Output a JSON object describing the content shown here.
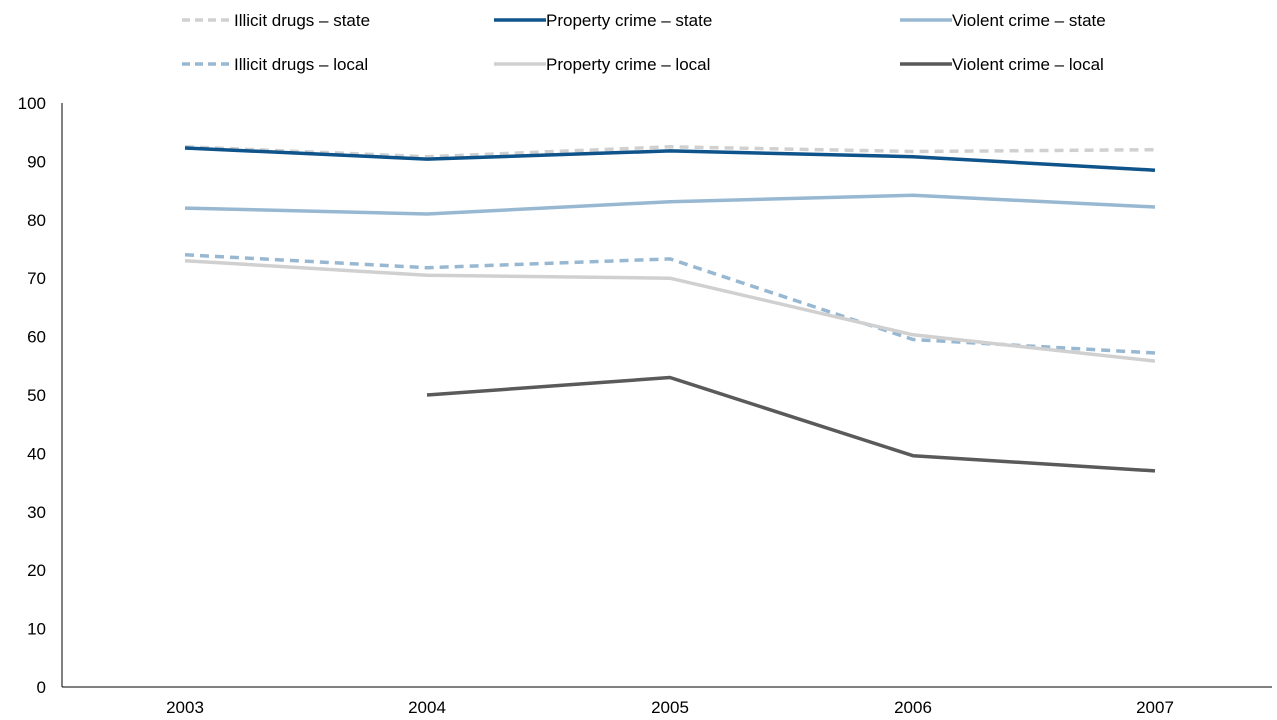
{
  "chart_data": {
    "type": "line",
    "title": "",
    "xlabel": "",
    "ylabel": "",
    "x": [
      "2003",
      "2004",
      "2005",
      "2006",
      "2007"
    ],
    "ylim": [
      0,
      100
    ],
    "yticks": [
      0,
      10,
      20,
      30,
      40,
      50,
      60,
      70,
      80,
      90,
      100
    ],
    "grid": false,
    "legend_position": "top",
    "series": [
      {
        "name": "Illicit drugs – state",
        "values": [
          92.5,
          90.8,
          92.5,
          91.7,
          92.0
        ],
        "color": "#d0d0d0",
        "dashed": true
      },
      {
        "name": "Property crime – state",
        "values": [
          92.3,
          90.4,
          91.8,
          90.8,
          88.5
        ],
        "color": "#0e5389",
        "dashed": false
      },
      {
        "name": "Violent crime – state",
        "values": [
          82.0,
          81.0,
          83.1,
          84.2,
          82.2
        ],
        "color": "#98b8d2",
        "dashed": false
      },
      {
        "name": "Illicit drugs – local",
        "values": [
          74.0,
          71.8,
          73.3,
          59.5,
          57.2
        ],
        "color": "#98b8d2",
        "dashed": true
      },
      {
        "name": "Property crime – local",
        "values": [
          73.0,
          70.5,
          70.0,
          60.3,
          55.8
        ],
        "color": "#d0d0d0",
        "dashed": false
      },
      {
        "name": "Violent crime – local",
        "values": [
          null,
          50.0,
          53.0,
          39.6,
          37.0
        ],
        "color": "#5a5a5a",
        "dashed": false
      }
    ]
  }
}
